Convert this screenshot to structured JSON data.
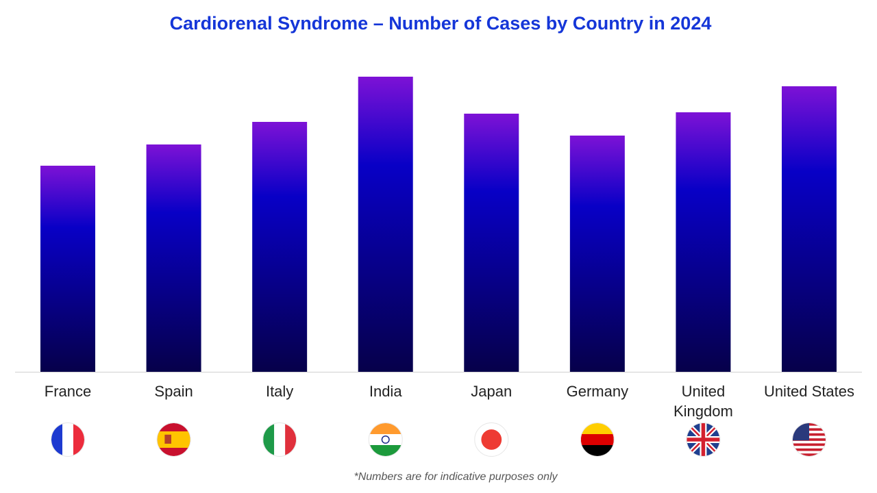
{
  "chart_data": {
    "type": "bar",
    "title": "Cardiorenal Syndrome – Number of Cases by Country in 2024",
    "categories": [
      "France",
      "Spain",
      "Italy",
      "India",
      "Japan",
      "Germany",
      "United Kingdom",
      "United States"
    ],
    "values": [
      301,
      332,
      365,
      431,
      377,
      345,
      379,
      417
    ],
    "ylim": [
      0,
      450
    ],
    "colors": [
      "#7d12d6",
      "#0800c6",
      "#06004a"
    ],
    "note": "*Numbers are for indicative purposes only"
  }
}
